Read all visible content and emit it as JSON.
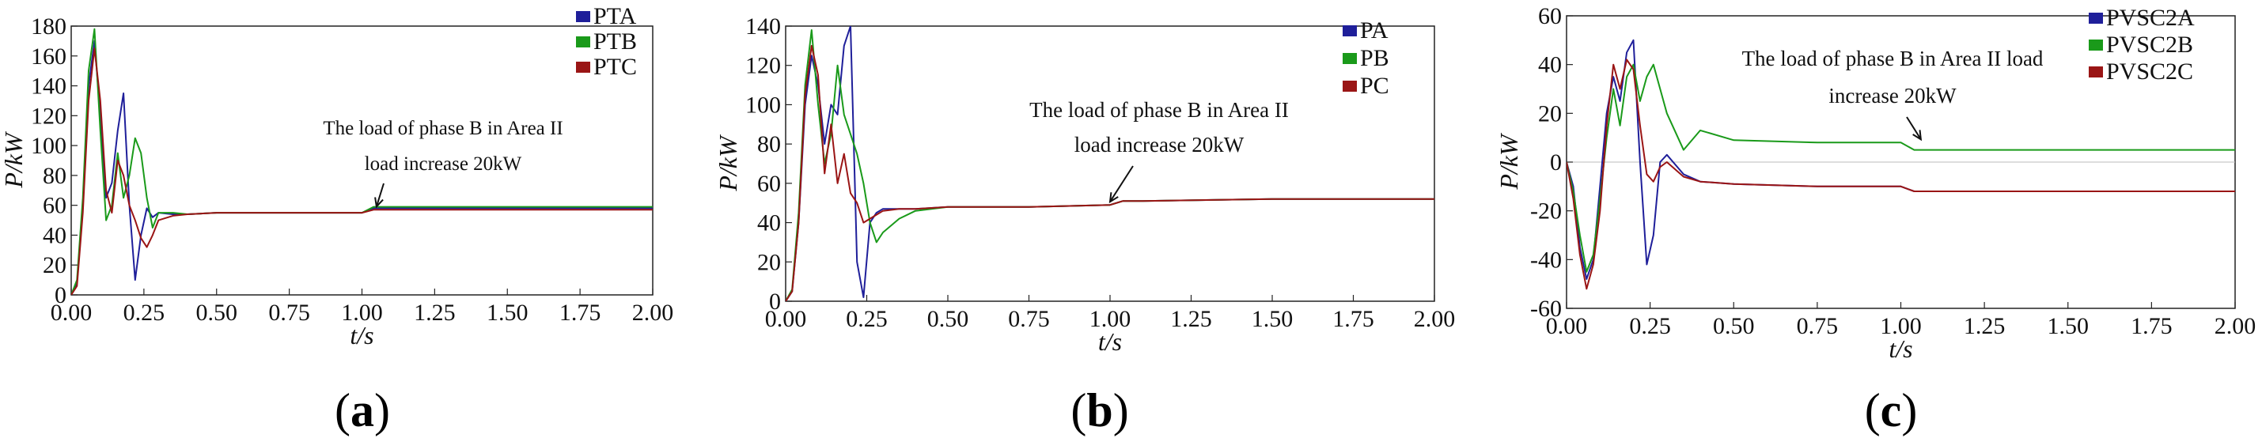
{
  "figure": {
    "panels": [
      {
        "id": "a",
        "caption_open": "(",
        "caption_letter": "a",
        "caption_close": ")"
      },
      {
        "id": "b",
        "caption_open": "(",
        "caption_letter": "b",
        "caption_close": ")"
      },
      {
        "id": "c",
        "caption_open": "(",
        "caption_letter": "c",
        "caption_close": ")"
      }
    ]
  },
  "chart_data": [
    {
      "type": "line",
      "title": "",
      "xlabel": "t/s",
      "ylabel": "P/kW",
      "xlim": [
        0,
        2
      ],
      "ylim": [
        0,
        180
      ],
      "xticks": [
        "0.00",
        "0.25",
        "0.50",
        "0.75",
        "1.00",
        "1.25",
        "1.50",
        "1.75",
        "2.00"
      ],
      "yticks": [
        "0",
        "20",
        "40",
        "60",
        "80",
        "100",
        "120",
        "140",
        "160",
        "180"
      ],
      "annotation": {
        "lines": [
          "The load of phase B in Area II",
          "load increase 20kW"
        ],
        "arrow_to": [
          1.05,
          57
        ]
      },
      "series": [
        {
          "name": "PTA",
          "color": "#1f1f9a",
          "x": [
            0,
            0.02,
            0.04,
            0.06,
            0.08,
            0.1,
            0.12,
            0.14,
            0.16,
            0.18,
            0.2,
            0.22,
            0.24,
            0.26,
            0.28,
            0.3,
            0.35,
            0.4,
            0.5,
            0.75,
            1.0,
            1.04,
            1.1,
            1.5,
            2.0
          ],
          "y": [
            0,
            8,
            60,
            140,
            170,
            120,
            65,
            75,
            110,
            135,
            60,
            10,
            40,
            58,
            52,
            55,
            54,
            54,
            55,
            55,
            55,
            58,
            58,
            58,
            58
          ]
        },
        {
          "name": "PTB",
          "color": "#1a9a1a",
          "x": [
            0,
            0.02,
            0.04,
            0.06,
            0.08,
            0.1,
            0.12,
            0.14,
            0.16,
            0.18,
            0.2,
            0.22,
            0.24,
            0.26,
            0.28,
            0.3,
            0.35,
            0.4,
            0.5,
            0.75,
            1.0,
            1.04,
            1.1,
            1.5,
            2.0
          ],
          "y": [
            0,
            10,
            65,
            150,
            178,
            110,
            50,
            60,
            95,
            65,
            80,
            105,
            95,
            65,
            45,
            55,
            55,
            54,
            55,
            55,
            55,
            59,
            59,
            59,
            59
          ]
        },
        {
          "name": "PTC",
          "color": "#9a1515",
          "x": [
            0,
            0.02,
            0.04,
            0.06,
            0.08,
            0.1,
            0.12,
            0.14,
            0.16,
            0.18,
            0.2,
            0.22,
            0.24,
            0.26,
            0.28,
            0.3,
            0.35,
            0.4,
            0.5,
            0.75,
            1.0,
            1.04,
            1.1,
            1.5,
            2.0
          ],
          "y": [
            0,
            6,
            55,
            130,
            165,
            130,
            70,
            55,
            90,
            80,
            60,
            50,
            38,
            32,
            40,
            50,
            53,
            54,
            55,
            55,
            55,
            57,
            57,
            57,
            57
          ]
        }
      ]
    },
    {
      "type": "line",
      "title": "",
      "xlabel": "t/s",
      "ylabel": "P/kW",
      "xlim": [
        0,
        2
      ],
      "ylim": [
        0,
        140
      ],
      "xticks": [
        "0.00",
        "0.25",
        "0.50",
        "0.75",
        "1.00",
        "1.25",
        "1.50",
        "1.75",
        "2.00"
      ],
      "yticks": [
        "0",
        "20",
        "40",
        "60",
        "80",
        "100",
        "120",
        "140"
      ],
      "annotation": {
        "lines": [
          "The load of phase B in Area II",
          "load increase 20kW"
        ],
        "arrow_to": [
          1.0,
          49
        ]
      },
      "series": [
        {
          "name": "PA",
          "color": "#1f1f9a",
          "x": [
            0,
            0.02,
            0.04,
            0.06,
            0.08,
            0.1,
            0.12,
            0.14,
            0.16,
            0.18,
            0.2,
            0.22,
            0.24,
            0.26,
            0.28,
            0.3,
            0.35,
            0.4,
            0.5,
            0.75,
            1.0,
            1.04,
            1.1,
            1.5,
            2.0
          ],
          "y": [
            0,
            5,
            40,
            100,
            125,
            110,
            80,
            100,
            95,
            130,
            140,
            20,
            2,
            40,
            45,
            47,
            47,
            47,
            48,
            48,
            49,
            51,
            51,
            52,
            52
          ]
        },
        {
          "name": "PB",
          "color": "#1a9a1a",
          "x": [
            0,
            0.02,
            0.04,
            0.06,
            0.08,
            0.1,
            0.12,
            0.14,
            0.16,
            0.18,
            0.2,
            0.22,
            0.24,
            0.26,
            0.28,
            0.3,
            0.35,
            0.4,
            0.5,
            0.75,
            1.0,
            1.04,
            1.1,
            1.5,
            2.0
          ],
          "y": [
            0,
            6,
            45,
            110,
            138,
            100,
            70,
            85,
            120,
            95,
            85,
            75,
            60,
            40,
            30,
            35,
            42,
            46,
            48,
            48,
            49,
            51,
            51,
            52,
            52
          ]
        },
        {
          "name": "PC",
          "color": "#9a1515",
          "x": [
            0,
            0.02,
            0.04,
            0.06,
            0.08,
            0.1,
            0.12,
            0.14,
            0.16,
            0.18,
            0.2,
            0.22,
            0.24,
            0.26,
            0.28,
            0.3,
            0.35,
            0.4,
            0.5,
            0.75,
            1.0,
            1.04,
            1.1,
            1.5,
            2.0
          ],
          "y": [
            0,
            5,
            40,
            105,
            130,
            115,
            65,
            90,
            60,
            75,
            55,
            50,
            40,
            42,
            44,
            46,
            47,
            47,
            48,
            48,
            49,
            51,
            51,
            52,
            52
          ]
        }
      ]
    },
    {
      "type": "line",
      "title": "",
      "xlabel": "t/s",
      "ylabel": "P/kW",
      "xlim": [
        0,
        2
      ],
      "ylim": [
        -60,
        60
      ],
      "xticks": [
        "0.00",
        "0.25",
        "0.50",
        "0.75",
        "1.00",
        "1.25",
        "1.50",
        "1.75",
        "2.00"
      ],
      "yticks": [
        "-60",
        "-40",
        "-20",
        "0",
        "20",
        "40",
        "60"
      ],
      "annotation": {
        "lines": [
          "The load of phase B in Area II  load",
          "increase 20kW"
        ],
        "arrow_to": [
          1.06,
          8
        ]
      },
      "series": [
        {
          "name": "PVSC2A",
          "color": "#1f1f9a",
          "x": [
            0,
            0.02,
            0.04,
            0.06,
            0.08,
            0.1,
            0.12,
            0.14,
            0.16,
            0.18,
            0.2,
            0.22,
            0.24,
            0.26,
            0.28,
            0.3,
            0.35,
            0.4,
            0.5,
            0.75,
            1.0,
            1.04,
            1.1,
            1.5,
            2.0
          ],
          "y": [
            0,
            -10,
            -35,
            -48,
            -40,
            -10,
            20,
            35,
            25,
            45,
            50,
            0,
            -42,
            -30,
            0,
            3,
            -5,
            -8,
            -9,
            -10,
            -10,
            -12,
            -12,
            -12,
            -12
          ]
        },
        {
          "name": "PVSC2B",
          "color": "#1a9a1a",
          "x": [
            0,
            0.02,
            0.04,
            0.06,
            0.08,
            0.1,
            0.12,
            0.14,
            0.16,
            0.18,
            0.2,
            0.22,
            0.24,
            0.26,
            0.28,
            0.3,
            0.35,
            0.4,
            0.5,
            0.75,
            1.0,
            1.04,
            1.1,
            1.5,
            2.0
          ],
          "y": [
            0,
            -12,
            -30,
            -45,
            -38,
            -15,
            10,
            30,
            15,
            35,
            40,
            25,
            35,
            40,
            30,
            20,
            5,
            13,
            9,
            8,
            8,
            5,
            5,
            5,
            5
          ]
        },
        {
          "name": "PVSC2C",
          "color": "#9a1515",
          "x": [
            0,
            0.02,
            0.04,
            0.06,
            0.08,
            0.1,
            0.12,
            0.14,
            0.16,
            0.18,
            0.2,
            0.22,
            0.24,
            0.26,
            0.28,
            0.3,
            0.35,
            0.4,
            0.5,
            0.75,
            1.0,
            1.04,
            1.1,
            1.5,
            2.0
          ],
          "y": [
            0,
            -15,
            -38,
            -52,
            -42,
            -20,
            15,
            40,
            30,
            42,
            38,
            15,
            -5,
            -8,
            -2,
            0,
            -6,
            -8,
            -9,
            -10,
            -10,
            -12,
            -12,
            -12,
            -12
          ]
        }
      ]
    }
  ]
}
